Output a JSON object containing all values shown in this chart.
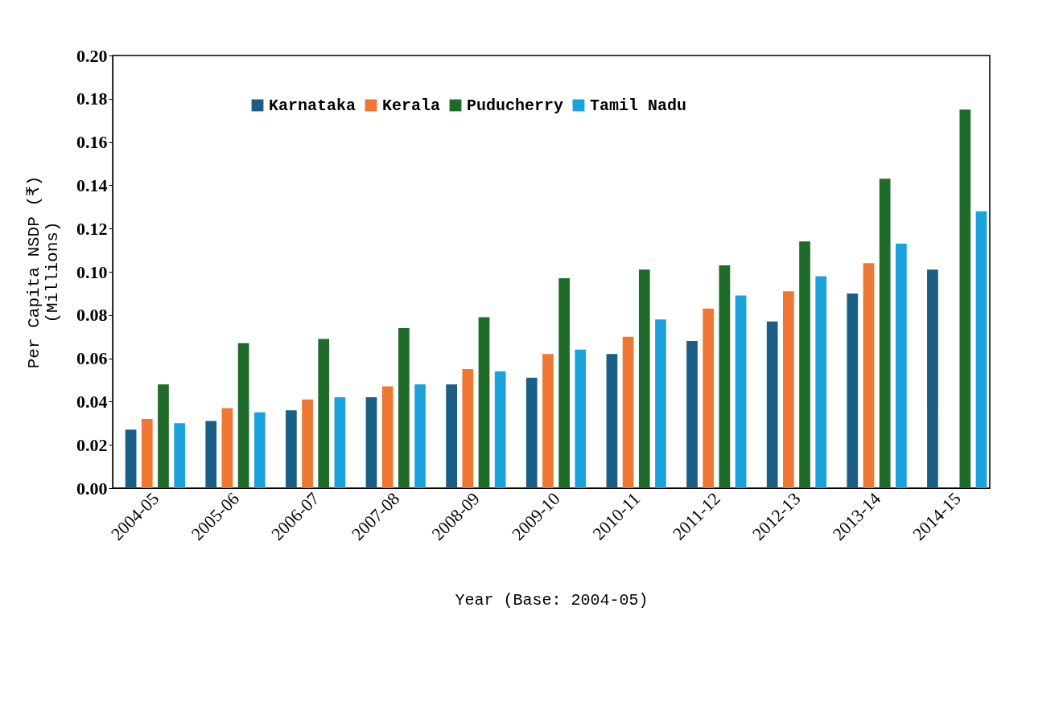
{
  "chart_data": {
    "type": "bar",
    "xlabel": "Year (Base: 2004-05)",
    "ylabel": "Per Capita NSDP (₹)\n(Millions)",
    "categories": [
      "2004-05",
      "2005-06",
      "2006-07",
      "2007-08",
      "2008-09",
      "2009-10",
      "2010-11",
      "2011-12",
      "2012-13",
      "2013-14",
      "2014-15"
    ],
    "series": [
      {
        "name": "Karnataka",
        "color": "#1b5e86",
        "values": [
          0.027,
          0.031,
          0.036,
          0.042,
          0.048,
          0.051,
          0.062,
          0.068,
          0.077,
          0.09,
          0.101
        ]
      },
      {
        "name": "Kerala",
        "color": "#ee7733",
        "values": [
          0.032,
          0.037,
          0.041,
          0.047,
          0.055,
          0.062,
          0.07,
          0.083,
          0.091,
          0.104,
          null
        ]
      },
      {
        "name": "Puducherry",
        "color": "#1e6b2a",
        "values": [
          0.048,
          0.067,
          0.069,
          0.074,
          0.079,
          0.097,
          0.101,
          0.103,
          0.114,
          0.143,
          0.175
        ]
      },
      {
        "name": "Tamil Nadu",
        "color": "#1aa2dc",
        "values": [
          0.03,
          0.035,
          0.042,
          0.048,
          0.054,
          0.064,
          0.078,
          0.089,
          0.098,
          0.113,
          0.128
        ]
      }
    ],
    "ylim": [
      0,
      0.2
    ],
    "yticks": [
      {
        "value": 0,
        "label": "0.00"
      },
      {
        "value": 0.02,
        "label": "0.02"
      },
      {
        "value": 0.04,
        "label": "0.04"
      },
      {
        "value": 0.06,
        "label": "0.06"
      },
      {
        "value": 0.08,
        "label": "0.08"
      },
      {
        "value": 0.1,
        "label": "0.10"
      },
      {
        "value": 0.12,
        "label": "0.12"
      },
      {
        "value": 0.14,
        "label": "0.14"
      },
      {
        "value": 0.16,
        "label": "0.16"
      },
      {
        "value": 0.18,
        "label": "0.18"
      },
      {
        "value": 0.2,
        "label": "0.20"
      }
    ],
    "grid": false,
    "legend": "top"
  }
}
